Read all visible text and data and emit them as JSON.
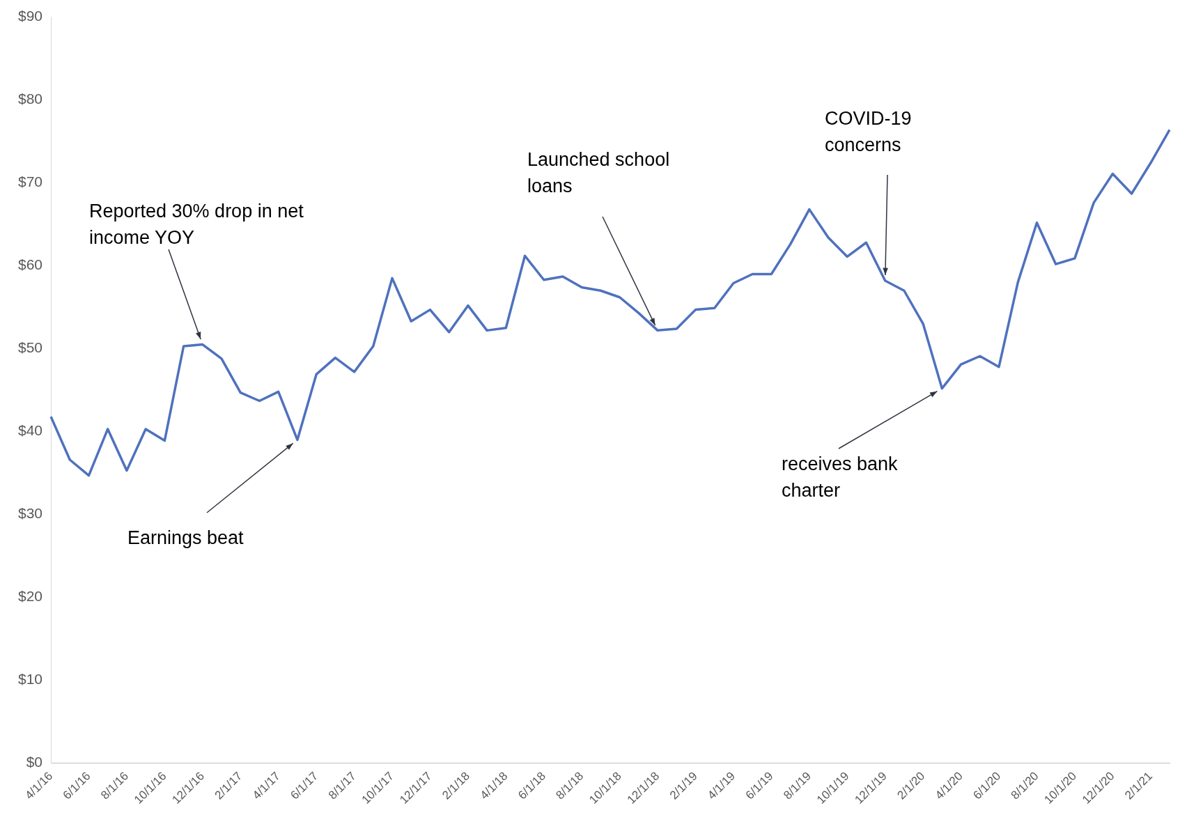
{
  "chart_data": {
    "type": "line",
    "categories": [
      "4/1/16",
      null,
      "6/1/16",
      null,
      "8/1/16",
      null,
      "10/1/16",
      null,
      "12/1/16",
      null,
      "2/1/17",
      null,
      "4/1/17",
      null,
      "6/1/17",
      null,
      "8/1/17",
      null,
      "10/1/17",
      null,
      "12/1/17",
      null,
      "2/1/18",
      null,
      "4/1/18",
      null,
      "6/1/18",
      null,
      "8/1/18",
      null,
      "10/1/18",
      null,
      "12/1/18",
      null,
      "2/1/19",
      null,
      "4/1/19",
      null,
      "6/1/19",
      null,
      "8/1/19",
      null,
      "10/1/19",
      null,
      "12/1/19",
      null,
      "2/1/20",
      null,
      "4/1/20",
      null,
      "6/1/20",
      null,
      "8/1/20",
      null,
      "10/1/20",
      null,
      "12/1/20",
      null,
      "2/1/21",
      null
    ],
    "values": [
      41.8,
      36.6,
      34.7,
      40.3,
      35.3,
      40.3,
      38.9,
      50.3,
      50.5,
      48.8,
      44.7,
      43.7,
      44.8,
      39.0,
      46.9,
      48.9,
      47.2,
      50.3,
      58.5,
      53.3,
      54.7,
      52.0,
      55.2,
      52.2,
      52.5,
      61.2,
      58.3,
      58.7,
      57.4,
      57.0,
      56.2,
      54.3,
      52.2,
      52.4,
      54.7,
      54.9,
      57.9,
      59.0,
      59.0,
      62.6,
      66.8,
      63.4,
      61.1,
      62.8,
      58.2,
      57.0,
      53.0,
      45.2,
      48.1,
      49.1,
      47.8,
      58.0,
      65.2,
      60.2,
      60.9,
      67.6,
      71.1,
      68.7,
      72.4,
      76.4
    ],
    "color": "#4f71be",
    "ylim": [
      0,
      90
    ],
    "yticks": [
      {
        "value": 0,
        "label": "$0"
      },
      {
        "value": 10,
        "label": "$10"
      },
      {
        "value": 20,
        "label": "$20"
      },
      {
        "value": 30,
        "label": "$30"
      },
      {
        "value": 40,
        "label": "$40"
      },
      {
        "value": 50,
        "label": "$50"
      },
      {
        "value": 60,
        "label": "$60"
      },
      {
        "value": 70,
        "label": "$70"
      },
      {
        "value": 80,
        "label": "$80"
      },
      {
        "value": 90,
        "label": "$90"
      }
    ],
    "grid": false,
    "marker": "none",
    "annotations": [
      {
        "text": "Reported 30% drop in net income YOY",
        "x": "12/1/16",
        "y": 50.5
      },
      "Earnings beat",
      {
        "text": "Launched school loans",
        "x": "12/1/18",
        "y": 52.2
      },
      {
        "text": "COVID-19 concerns",
        "x": "12/1/19",
        "y": 58.2
      },
      "receives bank charter"
    ]
  }
}
